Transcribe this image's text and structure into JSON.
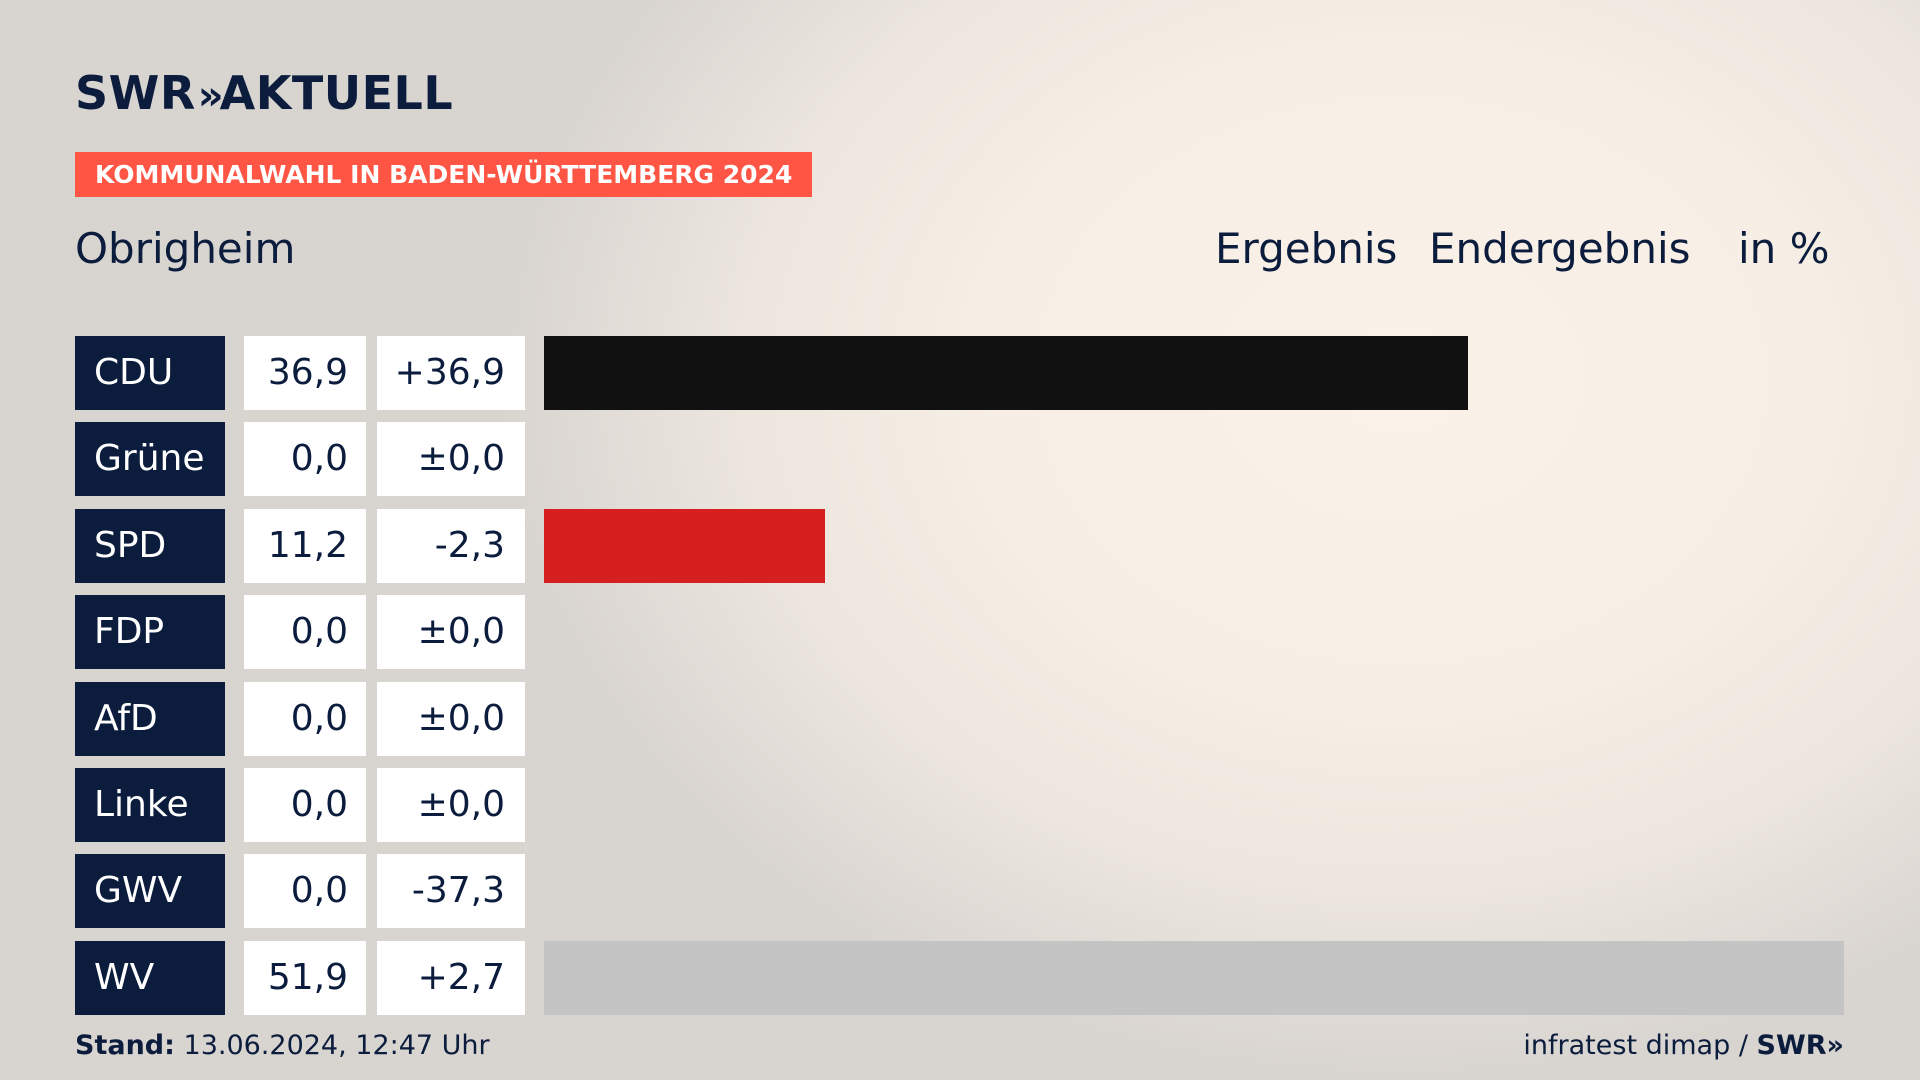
{
  "header": {
    "logo": "SWR",
    "logo_chevrons": "»",
    "logo_suffix": "AKTUELL",
    "tag": "KOMMUNALWAHL IN BADEN-WÜRTTEMBERG 2024",
    "place": "Obrigheim",
    "col_result": "Ergebnis",
    "col_status": "Endergebnis",
    "col_unit": "in %"
  },
  "chart_data": {
    "type": "bar",
    "categories": [
      "CDU",
      "Grüne",
      "SPD",
      "FDP",
      "AfD",
      "Linke",
      "GWV",
      "WV"
    ],
    "values": [
      36.9,
      0.0,
      11.2,
      0.0,
      0.0,
      0.0,
      0.0,
      51.9
    ],
    "values_label": [
      "36,9",
      "0,0",
      "11,2",
      "0,0",
      "0,0",
      "0,0",
      "0,0",
      "51,9"
    ],
    "diff_label": [
      "+36,9",
      "±0,0",
      "-2,3",
      "±0,0",
      "±0,0",
      "±0,0",
      "-37,3",
      "+2,7"
    ],
    "colors": [
      "#111111",
      "#1a9a3a",
      "#d61f1f",
      "#f5d800",
      "#1a9be6",
      "#b0206f",
      "#888888",
      "#c4c4c4"
    ],
    "xlim": [
      0,
      51.9
    ]
  },
  "footer": {
    "stand_label": "Stand:",
    "stand_value": "13.06.2024, 12:47 Uhr",
    "source": "infratest dimap /",
    "source_brand": "SWR»"
  }
}
